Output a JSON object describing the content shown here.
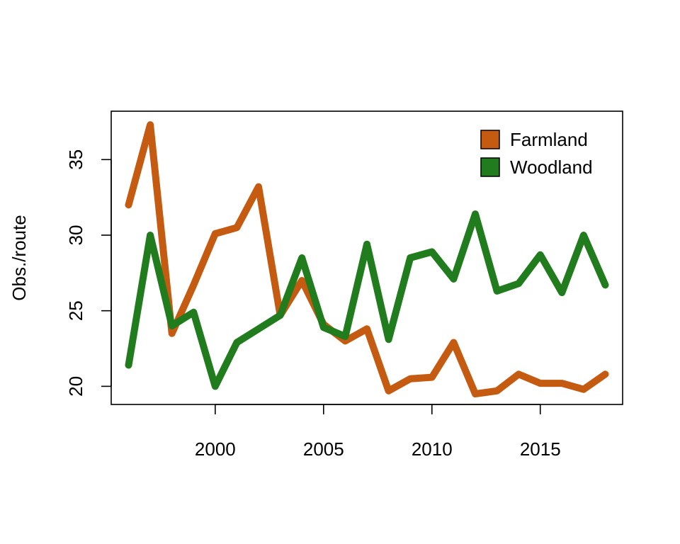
{
  "chart_data": {
    "type": "line",
    "title": "",
    "xlabel": "",
    "ylabel": "Obs./route",
    "xlim": [
      1995.2,
      2018.8
    ],
    "ylim": [
      18.8,
      38.2
    ],
    "x_ticks": [
      2000,
      2005,
      2010,
      2015
    ],
    "y_ticks": [
      20,
      25,
      30,
      35
    ],
    "grid": false,
    "legend_position": "top-right",
    "x": [
      1996,
      1997,
      1998,
      1999,
      2000,
      2001,
      2002,
      2003,
      2004,
      2005,
      2006,
      2007,
      2008,
      2009,
      2010,
      2011,
      2012,
      2013,
      2014,
      2015,
      2016,
      2017,
      2018
    ],
    "series": [
      {
        "name": "Farmland",
        "color": "#c55a11",
        "values": [
          32.0,
          37.3,
          23.5,
          26.7,
          30.1,
          30.5,
          33.2,
          24.7,
          27.0,
          24.1,
          23.0,
          23.8,
          19.7,
          20.5,
          20.6,
          22.9,
          19.5,
          19.7,
          20.8,
          20.2,
          20.2,
          19.8,
          20.8
        ]
      },
      {
        "name": "Woodland",
        "color": "#217c1e",
        "values": [
          21.4,
          30.0,
          24.0,
          24.9,
          20.0,
          22.9,
          23.8,
          24.7,
          28.5,
          23.9,
          23.3,
          29.4,
          23.1,
          28.5,
          28.9,
          27.1,
          31.4,
          26.3,
          26.8,
          28.7,
          26.2,
          30.0,
          26.7
        ]
      }
    ]
  }
}
